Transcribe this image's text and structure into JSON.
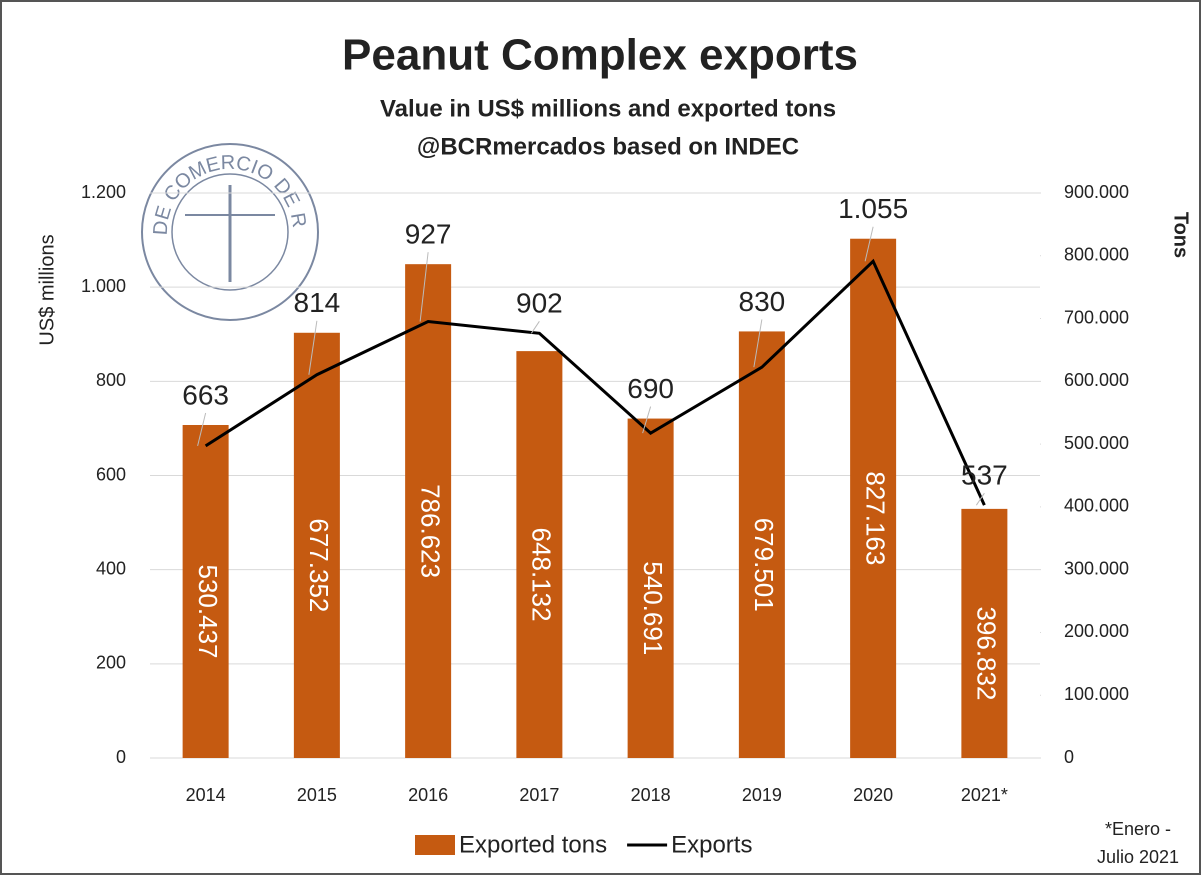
{
  "chart_data": {
    "type": "bar_line",
    "title": "Peanut Complex exports",
    "subtitle": "Value in US$ millions and exported tons",
    "source": "@BCRmercados based on INDEC",
    "logo_text": "BOLSA DE COMERCIO DE ROSARIO",
    "ylabel": "US$ millions",
    "y2label": "Tons",
    "footnote": [
      "*Enero -",
      "Julio 2021"
    ],
    "categories": [
      "2014",
      "2015",
      "2016",
      "2017",
      "2018",
      "2019",
      "2020",
      "2021*"
    ],
    "series": [
      {
        "name": "Exported tons",
        "type": "bar",
        "axis": "y2",
        "color": "#c55a11",
        "values": [
          530437,
          677352,
          786623,
          648132,
          540691,
          679501,
          827163,
          396832
        ],
        "value_labels": [
          "530.437",
          "677.352",
          "786.623",
          "648.132",
          "540.691",
          "679.501",
          "827.163",
          "396.832"
        ]
      },
      {
        "name": "Exports",
        "type": "line",
        "axis": "y",
        "color": "#000000",
        "values": [
          663,
          814,
          927,
          902,
          690,
          830,
          1055,
          537
        ],
        "value_labels": [
          "663",
          "814",
          "927",
          "902",
          "690",
          "830",
          "1.055",
          "537"
        ]
      }
    ],
    "ylim": [
      0,
      1200
    ],
    "yticks": [
      0,
      200,
      400,
      600,
      800,
      {
        "value": 1000,
        "label": "1.000"
      },
      {
        "value": 1200,
        "label": "1.200"
      }
    ],
    "y2lim": [
      0,
      900000
    ],
    "y2ticks": [
      0,
      {
        "value": 100000,
        "label": "100.000"
      },
      {
        "value": 200000,
        "label": "200.000"
      },
      {
        "value": 300000,
        "label": "300.000"
      },
      {
        "value": 400000,
        "label": "400.000"
      },
      {
        "value": 500000,
        "label": "500.000"
      },
      {
        "value": 600000,
        "label": "600.000"
      },
      {
        "value": 700000,
        "label": "700.000"
      },
      {
        "value": 800000,
        "label": "800.000"
      },
      {
        "value": 900000,
        "label": "900.000"
      }
    ],
    "grid": true,
    "legend": "bottom"
  }
}
